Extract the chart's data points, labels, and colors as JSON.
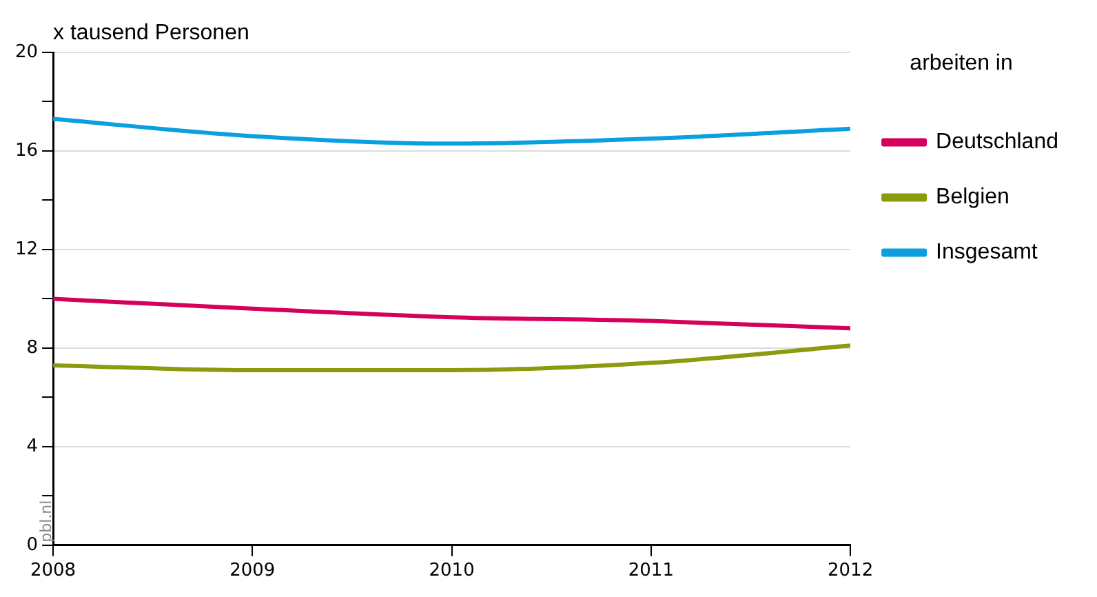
{
  "chart_data": {
    "type": "line",
    "ylabel": "x tausend Personen",
    "legend_title": "arbeiten in",
    "x": [
      2008,
      2009,
      2010,
      2011,
      2012
    ],
    "xlim": [
      2008,
      2012
    ],
    "xticks": [
      2008,
      2009,
      2010,
      2011,
      2012
    ],
    "ylim": [
      0,
      20
    ],
    "yticks": [
      0,
      {
        "value": 2,
        "label": null
      },
      4,
      {
        "value": 6,
        "label": null
      },
      8,
      {
        "value": 10,
        "label": null
      },
      12,
      {
        "value": 14,
        "label": null
      },
      16,
      {
        "value": 18,
        "label": null
      },
      20
    ],
    "series": [
      {
        "name": "Deutschland",
        "color": "#d4005a",
        "values": [
          10.0,
          9.6,
          9.25,
          9.1,
          8.8
        ]
      },
      {
        "name": "Belgien",
        "color": "#8c9a0e",
        "values": [
          7.3,
          7.1,
          7.1,
          7.4,
          8.1
        ]
      },
      {
        "name": "Insgesamt",
        "color": "#0aa0e0",
        "values": [
          17.3,
          16.6,
          16.3,
          16.5,
          16.9
        ]
      }
    ],
    "grid": "y",
    "legend": "right",
    "marker": "none",
    "line_style": "solid",
    "annotations": [
      "pbl.nl"
    ]
  }
}
